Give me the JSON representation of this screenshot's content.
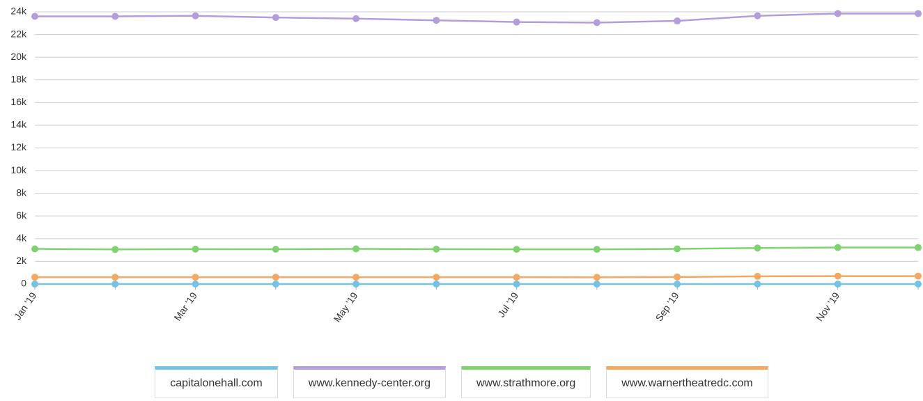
{
  "chart_data": {
    "type": "line",
    "categories": [
      "Jan '19",
      null,
      "Mar '19",
      null,
      "May '19",
      null,
      "Jul '19",
      null,
      "Sep '19",
      null,
      "Nov '19",
      null
    ],
    "series": [
      {
        "name": "capitalonehall.com",
        "color": "#72c3e6",
        "values": [
          0,
          0,
          0,
          0,
          0,
          0,
          0,
          0,
          0,
          0,
          0,
          0
        ]
      },
      {
        "name": "www.kennedy-center.org",
        "color": "#b39ddb",
        "values": [
          23600,
          23600,
          23650,
          23500,
          23400,
          23250,
          23100,
          23050,
          23200,
          23650,
          23850,
          23850
        ]
      },
      {
        "name": "www.strathmore.org",
        "color": "#7ed36f",
        "values": [
          3100,
          3050,
          3080,
          3070,
          3100,
          3080,
          3060,
          3060,
          3100,
          3180,
          3220,
          3220
        ]
      },
      {
        "name": "www.warnertheatredc.com",
        "color": "#f4a95e",
        "values": [
          600,
          600,
          600,
          600,
          600,
          600,
          600,
          590,
          620,
          680,
          700,
          700
        ]
      }
    ],
    "ylim": [
      0,
      24000
    ],
    "yticks": [
      0,
      {
        "value": 2000,
        "label": "2k"
      },
      {
        "value": 4000,
        "label": "4k"
      },
      {
        "value": 6000,
        "label": "6k"
      },
      {
        "value": 8000,
        "label": "8k"
      },
      {
        "value": 10000,
        "label": "10k"
      },
      {
        "value": 12000,
        "label": "12k"
      },
      {
        "value": 14000,
        "label": "14k"
      },
      {
        "value": 16000,
        "label": "16k"
      },
      {
        "value": 18000,
        "label": "18k"
      },
      {
        "value": 20000,
        "label": "20k"
      },
      {
        "value": 22000,
        "label": "22k"
      },
      {
        "value": 24000,
        "label": "24k"
      }
    ],
    "grid": true,
    "legend": "bottom"
  }
}
